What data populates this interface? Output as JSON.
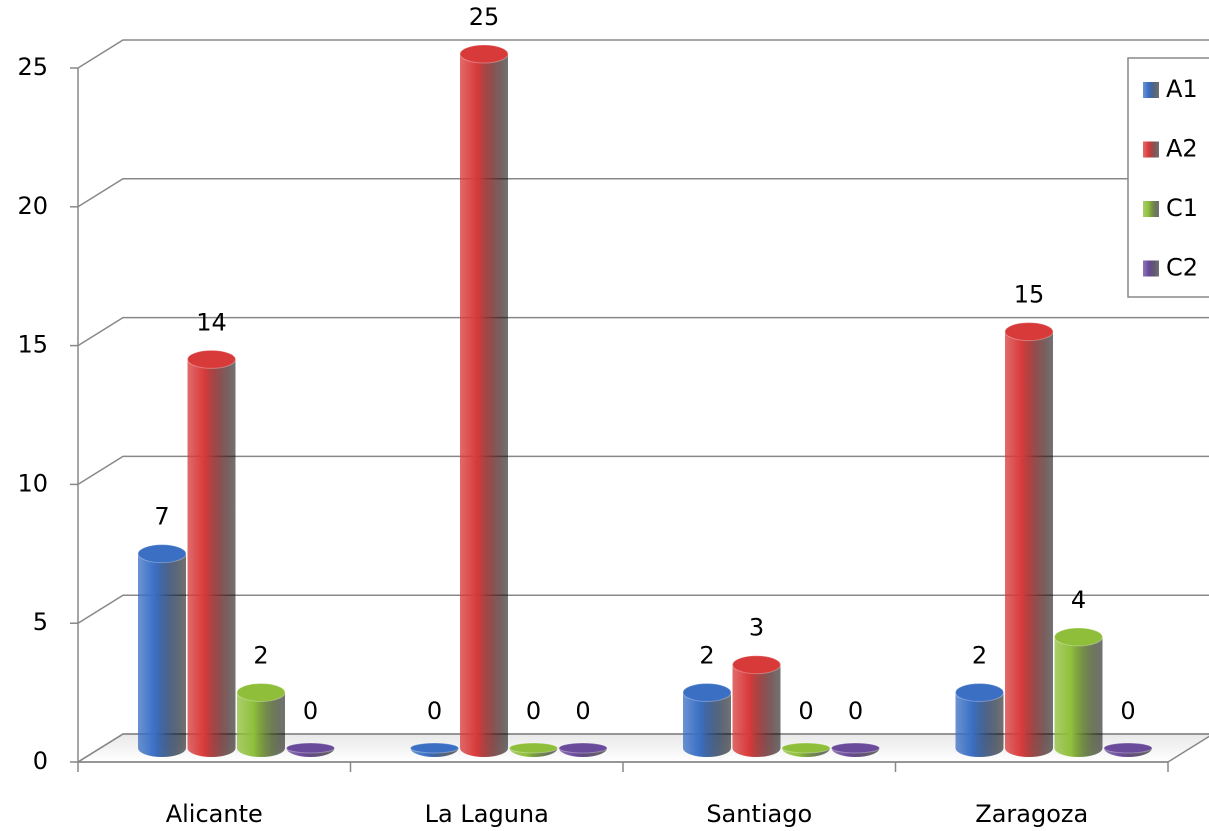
{
  "chart_data": {
    "type": "bar3d",
    "categories": [
      "Alicante",
      "La Laguna",
      "Santiago",
      "Zaragoza"
    ],
    "series": [
      {
        "name": "A1",
        "color": "#3a6fc4",
        "values": [
          7,
          0,
          2,
          2
        ]
      },
      {
        "name": "A2",
        "color": "#d83a3a",
        "values": [
          14,
          25,
          3,
          15
        ]
      },
      {
        "name": "C1",
        "color": "#8fbf3a",
        "values": [
          2,
          0,
          0,
          4
        ]
      },
      {
        "name": "C2",
        "color": "#6a4a9a",
        "values": [
          0,
          0,
          0,
          0
        ]
      }
    ],
    "ylim": [
      0,
      25
    ],
    "yticks": [
      0,
      5,
      10,
      15,
      20,
      25
    ],
    "grid": true,
    "legend": "right"
  }
}
